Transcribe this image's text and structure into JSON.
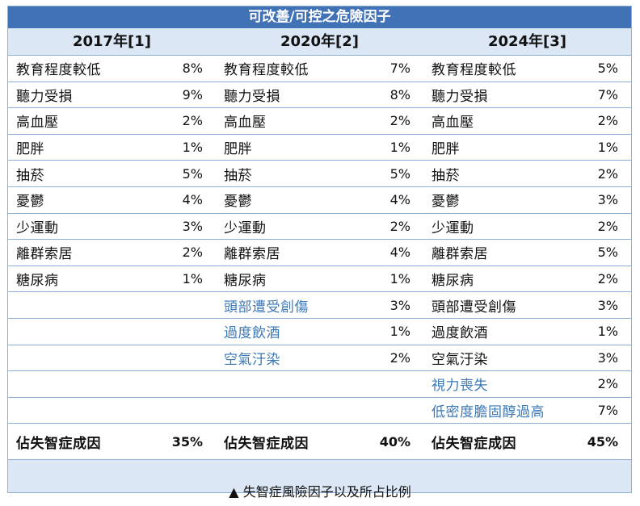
{
  "title_part1": "可改",
  "title_part2": "善",
  "title_part3": "/可控之危險因子",
  "columns": [
    "2017年[1]",
    "2020年[2]",
    "2024年[3]"
  ],
  "rows": [
    [
      {
        "name": "教育程度較低",
        "pct": "8%"
      },
      {
        "name": "教育程度較低",
        "pct": "7%"
      },
      {
        "name": "教育程度較低",
        "pct": "5%"
      }
    ],
    [
      {
        "name": "聽力受損",
        "pct": "9%"
      },
      {
        "name": "聽力受損",
        "pct": "8%"
      },
      {
        "name": "聽力受損",
        "pct": "7%"
      }
    ],
    [
      {
        "name": "高血壓",
        "pct": "2%"
      },
      {
        "name": "高血壓",
        "pct": "2%"
      },
      {
        "name": "高血壓",
        "pct": "2%"
      }
    ],
    [
      {
        "name": "肥胖",
        "pct": "1%"
      },
      {
        "name": "肥胖",
        "pct": "1%"
      },
      {
        "name": "肥胖",
        "pct": "1%"
      }
    ],
    [
      {
        "name": "抽菸",
        "pct": "5%"
      },
      {
        "name": "抽菸",
        "pct": "5%"
      },
      {
        "name": "抽菸",
        "pct": "2%"
      }
    ],
    [
      {
        "name": "憂鬱",
        "pct": "4%"
      },
      {
        "name": "憂鬱",
        "pct": "4%"
      },
      {
        "name": "憂鬱",
        "pct": "3%"
      }
    ],
    [
      {
        "name": "少運動",
        "pct": "3%"
      },
      {
        "name": "少運動",
        "pct": "2%"
      },
      {
        "name": "少運動",
        "pct": "2%"
      }
    ],
    [
      {
        "name": "離群索居",
        "pct": "2%"
      },
      {
        "name": "離群索居",
        "pct": "4%"
      },
      {
        "name": "離群索居",
        "pct": "5%"
      }
    ],
    [
      {
        "name": "糖尿病",
        "pct": "1%"
      },
      {
        "name": "糖尿病",
        "pct": "1%"
      },
      {
        "name": "糖尿病",
        "pct": "2%"
      }
    ],
    [
      {
        "name": "",
        "pct": ""
      },
      {
        "name": "頭部遭受創傷",
        "pct": "3%",
        "blue": true
      },
      {
        "name": "頭部遭受創傷",
        "pct": "3%"
      }
    ],
    [
      {
        "name": "",
        "pct": ""
      },
      {
        "name": "過度飲酒",
        "pct": "1%",
        "blue": true
      },
      {
        "name": "過度飲酒",
        "pct": "1%"
      }
    ],
    [
      {
        "name": "",
        "pct": ""
      },
      {
        "name": "空氣汙染",
        "pct": "2%",
        "blue": true
      },
      {
        "name": "空氣汙染",
        "pct": "3%"
      }
    ],
    [
      {
        "name": "",
        "pct": ""
      },
      {
        "name": "",
        "pct": ""
      },
      {
        "name": "視力喪失",
        "pct": "2%",
        "blue": true
      }
    ],
    [
      {
        "name": "",
        "pct": ""
      },
      {
        "name": "",
        "pct": ""
      },
      {
        "name": "低密度膽固醇過高",
        "pct": "7%",
        "blue": true
      }
    ]
  ],
  "totals": [
    {
      "name": "佔失智症成因",
      "pct": "35%"
    },
    {
      "name": "佔失智症成因",
      "pct": "40%"
    },
    {
      "name": "佔失智症成因",
      "pct": "45%"
    }
  ],
  "caption": "▲ 失智症風險因子以及所占比例",
  "colors": {
    "title_bg": "#4272b6",
    "header_bg": "#dbe7f5",
    "border": "#8fb0d6",
    "highlight_text": "#3b78b8"
  }
}
